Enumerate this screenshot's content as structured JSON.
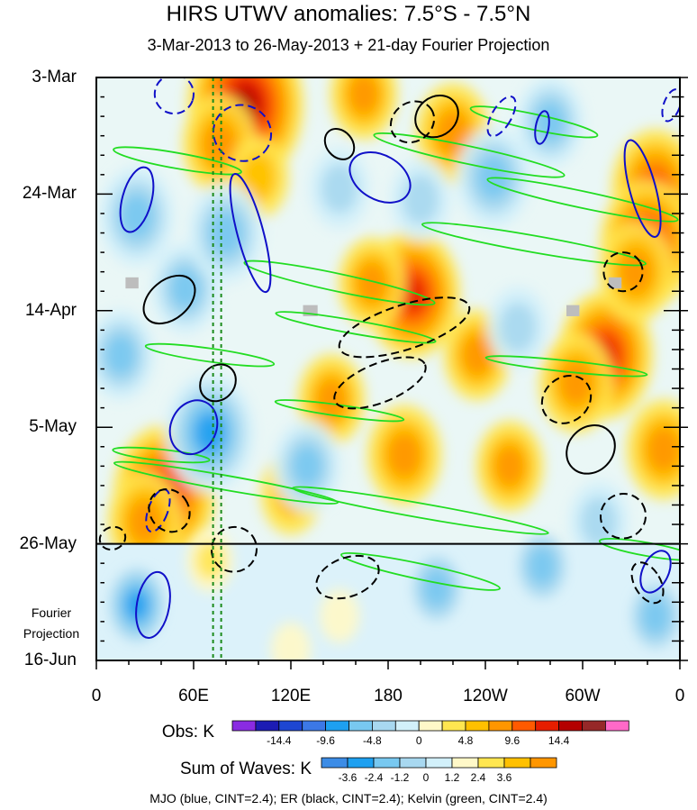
{
  "chart_data": {
    "type": "heatmap",
    "title": "HIRS UTWV anomalies: 7.5°S - 7.5°N",
    "subtitle": "3-Mar-2013 to 26-May-2013 + 21-day Fourier Projection",
    "x_axis": {
      "ticks": [
        "0",
        "60E",
        "120E",
        "180",
        "120W",
        "60W",
        "0"
      ],
      "lon_values": [
        0,
        60,
        120,
        180,
        240,
        300,
        360
      ],
      "range": [
        0,
        360
      ]
    },
    "y_axis": {
      "ticks": [
        "3-Mar",
        "24-Mar",
        "14-Apr",
        "5-May",
        "26-May",
        "16-Jun"
      ],
      "day_values": [
        0,
        21,
        42,
        63,
        84,
        105
      ],
      "range": [
        0,
        105
      ],
      "direction": "down"
    },
    "projection_label_line1": "Fourier",
    "projection_label_line2": "Projection",
    "projection_start_day": 84,
    "dashed_lines_lon": [
      72,
      77
    ],
    "obs_colorbar": {
      "label": "Obs: K",
      "tick_labels": [
        "-14.4",
        "-9.6",
        "-4.8",
        "0",
        "4.8",
        "9.6",
        "14.4"
      ],
      "colors": [
        "#8a2be2",
        "#1c1cb4",
        "#1e46d2",
        "#3c78e6",
        "#1ea0f0",
        "#78c8f0",
        "#a8d8f0",
        "#d2f0fa",
        "#fff8c8",
        "#ffe650",
        "#ffc000",
        "#ff9600",
        "#ff5a00",
        "#e61e00",
        "#b40000",
        "#962828",
        "#ff69c8"
      ]
    },
    "wave_colorbar": {
      "label": "Sum of Waves: K",
      "tick_labels": [
        "-3.6",
        "-2.4",
        "-1.2",
        "0",
        "1.2",
        "2.4",
        "3.6"
      ],
      "colors": [
        "#3c8ce6",
        "#1ea0f0",
        "#78c8f0",
        "#a8d8f0",
        "#d2f0fa",
        "#fff8c8",
        "#ffe650",
        "#ffc000",
        "#ff9600"
      ]
    },
    "legend_text": "MJO (blue, CINT=2.4); ER (black, CINT=2.4); Kelvin (green, CINT=2.4)",
    "series": [
      {
        "name": "MJO",
        "color": "#1010c8",
        "contour_interval": 2.4
      },
      {
        "name": "ER",
        "color": "#000000",
        "contour_interval": 2.4
      },
      {
        "name": "Kelvin",
        "color": "#22dd22",
        "contour_interval": 2.4
      }
    ],
    "anomaly_blobs": [
      {
        "lon": 92,
        "day": 5,
        "value": 14.4
      },
      {
        "lon": 76,
        "day": 12,
        "value": 7.2
      },
      {
        "lon": 42,
        "day": 75,
        "value": 12.0
      },
      {
        "lon": 30,
        "day": 80,
        "value": 7.2
      },
      {
        "lon": 195,
        "day": 39,
        "value": 10.8
      },
      {
        "lon": 170,
        "day": 37,
        "value": 6.0
      },
      {
        "lon": 314,
        "day": 50,
        "value": 10.8
      },
      {
        "lon": 296,
        "day": 55,
        "value": 7.2
      },
      {
        "lon": 345,
        "day": 20,
        "value": 9.6
      },
      {
        "lon": 340,
        "day": 30,
        "value": 10.8
      },
      {
        "lon": 333,
        "day": 35,
        "value": 7.2
      },
      {
        "lon": 190,
        "day": 68,
        "value": 7.2
      },
      {
        "lon": 255,
        "day": 70,
        "value": 6.0
      },
      {
        "lon": 350,
        "day": 67,
        "value": 7.2
      },
      {
        "lon": 220,
        "day": 10,
        "value": 7.2
      },
      {
        "lon": 145,
        "day": 58,
        "value": 6.0
      },
      {
        "lon": 120,
        "day": 75,
        "value": 4.8
      },
      {
        "lon": 235,
        "day": 50,
        "value": 6.0
      },
      {
        "lon": 100,
        "day": 18,
        "value": 4.8
      },
      {
        "lon": 165,
        "day": 3,
        "value": 6.0
      },
      {
        "lon": 70,
        "day": 64,
        "value": -9.6
      },
      {
        "lon": 25,
        "day": 25,
        "value": -7.2
      },
      {
        "lon": 55,
        "day": 38,
        "value": -6.0
      },
      {
        "lon": 130,
        "day": 70,
        "value": -6.0
      },
      {
        "lon": 80,
        "day": 28,
        "value": -7.2
      },
      {
        "lon": 245,
        "day": 18,
        "value": -7.2
      },
      {
        "lon": 280,
        "day": 8,
        "value": -6.0
      },
      {
        "lon": 15,
        "day": 50,
        "value": -6.0
      },
      {
        "lon": 200,
        "day": 22,
        "value": -4.8
      },
      {
        "lon": 260,
        "day": 45,
        "value": -4.8
      },
      {
        "lon": 150,
        "day": 20,
        "value": -4.8
      },
      {
        "lon": 310,
        "day": 80,
        "value": -4.8
      }
    ],
    "projection_blobs": [
      {
        "lon": 25,
        "day": 95,
        "value": -3.6
      },
      {
        "lon": 70,
        "day": 87,
        "value": 2.4
      },
      {
        "lon": 210,
        "day": 92,
        "value": -2.4
      },
      {
        "lon": 275,
        "day": 88,
        "value": -2.4
      },
      {
        "lon": 345,
        "day": 97,
        "value": -2.4
      },
      {
        "lon": 150,
        "day": 97,
        "value": 1.2
      },
      {
        "lon": 120,
        "day": 103,
        "value": 1.2
      }
    ],
    "mjo_contours": [
      {
        "lon": 48,
        "day": 3,
        "rx": 12,
        "ry": 3.5,
        "angle": 20,
        "dashed": true
      },
      {
        "lon": 25,
        "day": 22,
        "rx": 9,
        "ry": 6,
        "angle": 15,
        "dashed": false
      },
      {
        "lon": 95,
        "day": 28,
        "rx": 8,
        "ry": 11,
        "angle": -15,
        "dashed": false
      },
      {
        "lon": 175,
        "day": 18,
        "rx": 20,
        "ry": 4,
        "angle": 30,
        "dashed": false
      },
      {
        "lon": 90,
        "day": 10,
        "rx": 18,
        "ry": 5,
        "angle": 28,
        "dashed": true
      },
      {
        "lon": 60,
        "day": 63,
        "rx": 14,
        "ry": 5,
        "angle": 25,
        "dashed": false
      },
      {
        "lon": 35,
        "day": 95,
        "rx": 10,
        "ry": 6,
        "angle": 10,
        "dashed": false
      },
      {
        "lon": 337,
        "day": 20,
        "rx": 8,
        "ry": 9,
        "angle": -15,
        "dashed": false
      },
      {
        "lon": 275,
        "day": 9,
        "rx": 4,
        "ry": 3,
        "angle": 10,
        "dashed": false
      },
      {
        "lon": 345,
        "day": 89,
        "rx": 8,
        "ry": 4,
        "angle": 25,
        "dashed": false
      },
      {
        "lon": 38,
        "day": 78,
        "rx": 6,
        "ry": 4,
        "angle": 20,
        "dashed": true
      },
      {
        "lon": 250,
        "day": 7,
        "rx": 6,
        "ry": 4,
        "angle": 30,
        "dashed": true
      },
      {
        "lon": 355,
        "day": 5,
        "rx": 5,
        "ry": 3,
        "angle": 20,
        "dashed": true
      }
    ],
    "er_contours": [
      {
        "lon": 45,
        "day": 40,
        "rx": 18,
        "ry": 3.5,
        "angle": -40,
        "dashed": false
      },
      {
        "lon": 195,
        "day": 8,
        "rx": 14,
        "ry": 3.5,
        "angle": -35,
        "dashed": true
      },
      {
        "lon": 210,
        "day": 7,
        "rx": 14,
        "ry": 3.5,
        "angle": -40,
        "dashed": false
      },
      {
        "lon": 190,
        "day": 45,
        "rx": 42,
        "ry": 4,
        "angle": -18,
        "dashed": true
      },
      {
        "lon": 175,
        "day": 55,
        "rx": 30,
        "ry": 3.5,
        "angle": -22,
        "dashed": true
      },
      {
        "lon": 290,
        "day": 58,
        "rx": 16,
        "ry": 4,
        "angle": -40,
        "dashed": true
      },
      {
        "lon": 305,
        "day": 67,
        "rx": 16,
        "ry": 4,
        "angle": -45,
        "dashed": false
      },
      {
        "lon": 325,
        "day": 35,
        "rx": 12,
        "ry": 3.5,
        "angle": -30,
        "dashed": true
      },
      {
        "lon": 325,
        "day": 79,
        "rx": 14,
        "ry": 4,
        "angle": -30,
        "dashed": true
      },
      {
        "lon": 155,
        "day": 90,
        "rx": 20,
        "ry": 3.5,
        "angle": -20,
        "dashed": true
      },
      {
        "lon": 85,
        "day": 85,
        "rx": 14,
        "ry": 4,
        "angle": -35,
        "dashed": true
      },
      {
        "lon": 45,
        "day": 78,
        "rx": 12,
        "ry": 4,
        "angle": -35,
        "dashed": true
      },
      {
        "lon": 10,
        "day": 83,
        "rx": 8,
        "ry": 2,
        "angle": -20,
        "dashed": true
      },
      {
        "lon": 340,
        "day": 91,
        "rx": 8,
        "ry": 4,
        "angle": -30,
        "dashed": true
      },
      {
        "lon": 150,
        "day": 12,
        "rx": 8,
        "ry": 3,
        "angle": -40,
        "dashed": false
      },
      {
        "lon": 75,
        "day": 55,
        "rx": 12,
        "ry": 3,
        "angle": -50,
        "dashed": false
      }
    ],
    "kelvin_contours": [
      {
        "lon": 50,
        "day": 15,
        "rx": 40,
        "ry": 1.4,
        "angle": 10
      },
      {
        "lon": 230,
        "day": 14,
        "rx": 60,
        "ry": 1.6,
        "angle": 12
      },
      {
        "lon": 270,
        "day": 8,
        "rx": 40,
        "ry": 1.4,
        "angle": 12
      },
      {
        "lon": 300,
        "day": 22,
        "rx": 60,
        "ry": 1.5,
        "angle": 12
      },
      {
        "lon": 150,
        "day": 37,
        "rx": 60,
        "ry": 1.6,
        "angle": 12
      },
      {
        "lon": 270,
        "day": 30,
        "rx": 70,
        "ry": 1.5,
        "angle": 10
      },
      {
        "lon": 160,
        "day": 45,
        "rx": 50,
        "ry": 1.2,
        "angle": 10
      },
      {
        "lon": 70,
        "day": 50,
        "rx": 40,
        "ry": 1.2,
        "angle": 8
      },
      {
        "lon": 80,
        "day": 73,
        "rx": 70,
        "ry": 1.3,
        "angle": 10
      },
      {
        "lon": 200,
        "day": 78,
        "rx": 80,
        "ry": 1.3,
        "angle": 10
      },
      {
        "lon": 200,
        "day": 89,
        "rx": 50,
        "ry": 1.4,
        "angle": 12
      },
      {
        "lon": 340,
        "day": 85,
        "rx": 30,
        "ry": 1.2,
        "angle": 10
      },
      {
        "lon": 150,
        "day": 60,
        "rx": 40,
        "ry": 1.0,
        "angle": 8
      },
      {
        "lon": 290,
        "day": 52,
        "rx": 50,
        "ry": 1.0,
        "angle": 6
      },
      {
        "lon": 40,
        "day": 68,
        "rx": 30,
        "ry": 1.0,
        "angle": 6
      }
    ],
    "missing_data_boxes": [
      {
        "lon": 22,
        "day": 37,
        "w": 8,
        "h": 2
      },
      {
        "lon": 132,
        "day": 42,
        "w": 9,
        "h": 2
      },
      {
        "lon": 320,
        "day": 37,
        "w": 8,
        "h": 2
      },
      {
        "lon": 294,
        "day": 42,
        "w": 8,
        "h": 2
      }
    ]
  }
}
